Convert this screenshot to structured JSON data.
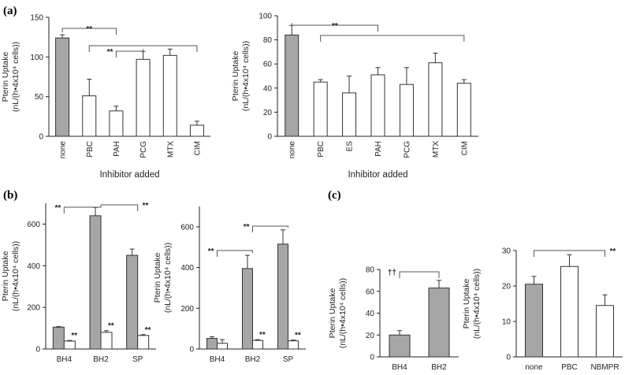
{
  "panels": {
    "a": "(a)",
    "b": "(b)",
    "c": "(c)"
  },
  "colors": {
    "gray": "#a6a6a6",
    "white": "#ffffff",
    "stroke": "#333333"
  },
  "chart_data": [
    {
      "type": "bar",
      "panel": "a",
      "categories": [
        "none",
        "PBC",
        "PAH",
        "PCG",
        "MTX",
        "CIM"
      ],
      "series": [
        {
          "values": [
            124,
            51,
            32,
            97,
            102,
            14
          ],
          "errors": [
            4,
            21,
            6,
            10,
            8,
            5
          ],
          "fill": [
            "gray",
            "white",
            "white",
            "white",
            "white",
            "white"
          ]
        }
      ],
      "ylabel": [
        "Pterin Uptake",
        "(nL/(h•4x10⁴ cells))"
      ],
      "xlabel": "Inhibitor added",
      "ylim": [
        0,
        150
      ],
      "yticks": [
        0,
        50,
        100,
        150
      ],
      "annotations": [
        {
          "text": "**",
          "from": 0,
          "to": 2
        },
        {
          "text": "**",
          "from": 2,
          "to": 3
        },
        {
          "text": "",
          "from": 1,
          "to": 5
        }
      ]
    },
    {
      "type": "bar",
      "panel": "a",
      "categories": [
        "none",
        "PBC",
        "ES",
        "PAH",
        "PCG",
        "MTX",
        "CIM"
      ],
      "series": [
        {
          "values": [
            84,
            45,
            36,
            51,
            43,
            61,
            44
          ],
          "errors": [
            8,
            2,
            14,
            6,
            14,
            8,
            3
          ],
          "fill": [
            "gray",
            "white",
            "white",
            "white",
            "white",
            "white",
            "white"
          ]
        }
      ],
      "ylabel": [
        "Pterin Uptake",
        "(nL/(h•4x10⁴ cells))"
      ],
      "xlabel": "Inhibitor added",
      "ylim": [
        0,
        100
      ],
      "yticks": [
        0,
        20,
        40,
        60,
        80,
        100
      ],
      "annotations": [
        {
          "text": "**",
          "from": 0,
          "to": 3
        },
        {
          "text": "",
          "from": 1,
          "to": 6
        }
      ]
    },
    {
      "type": "bar",
      "panel": "b",
      "categories": [
        "BH4",
        "BH2",
        "SP"
      ],
      "series": [
        {
          "values": [
            105,
            640,
            450
          ],
          "errors": [
            3,
            40,
            30
          ],
          "fill": "gray"
        },
        {
          "values": [
            38,
            80,
            65
          ],
          "errors": [
            3,
            8,
            4
          ],
          "fill": "white"
        }
      ],
      "ylabel": [
        "Pterin Uptake",
        "(nL/(h•4x10⁴ cells))"
      ],
      "ylim": [
        0,
        700
      ],
      "yticks": [
        0,
        200,
        400,
        600
      ],
      "star_labels": [
        "**",
        "**",
        "**"
      ],
      "annotations": [
        {
          "text": "**",
          "from": 0,
          "to": 1
        },
        {
          "text": "**",
          "from": 1,
          "to": 2
        }
      ]
    },
    {
      "type": "bar",
      "panel": "b",
      "categories": [
        "BH4",
        "BH2",
        "SP"
      ],
      "series": [
        {
          "values": [
            52,
            395,
            515
          ],
          "errors": [
            8,
            65,
            70
          ],
          "fill": "gray"
        },
        {
          "values": [
            28,
            42,
            40
          ],
          "errors": [
            18,
            4,
            4
          ],
          "fill": "white"
        }
      ],
      "ylabel": [
        "Pterin Uptake",
        "(nL/(h•4x10⁴ cells))"
      ],
      "ylim": [
        0,
        700
      ],
      "yticks": [
        0,
        200,
        400,
        600
      ],
      "star_labels": [
        "",
        "**",
        "**"
      ],
      "annotations": [
        {
          "text": "**",
          "from": 0,
          "to": 1
        },
        {
          "text": "**",
          "from": 1,
          "to": 2
        }
      ]
    },
    {
      "type": "bar",
      "panel": "c",
      "categories": [
        "BH4",
        "BH2"
      ],
      "series": [
        {
          "values": [
            20,
            63
          ],
          "errors": [
            4,
            7
          ],
          "fill": [
            "gray",
            "gray"
          ]
        }
      ],
      "ylabel": [
        "Pterin Uptake",
        "(nL/(h•4x10⁴ cells))"
      ],
      "ylim": [
        0,
        80
      ],
      "yticks": [
        0,
        20,
        40,
        60,
        80
      ],
      "annotations": [
        {
          "text": "††",
          "from": 0,
          "to": 1
        }
      ]
    },
    {
      "type": "bar",
      "panel": "c",
      "categories": [
        "none",
        "PBC",
        "NBMPR"
      ],
      "series": [
        {
          "values": [
            20.5,
            25.5,
            14.5
          ],
          "errors": [
            2.2,
            3.3,
            3.0
          ],
          "fill": [
            "gray",
            "white",
            "white"
          ]
        }
      ],
      "ylabel": [
        "Pterin Uptake",
        "(nL/(h•4x10⁴ cells))"
      ],
      "ylim": [
        0,
        30
      ],
      "yticks": [
        0,
        10,
        20,
        30
      ],
      "annotations": [
        {
          "text": "**",
          "from": 0,
          "to": 2
        }
      ]
    }
  ]
}
